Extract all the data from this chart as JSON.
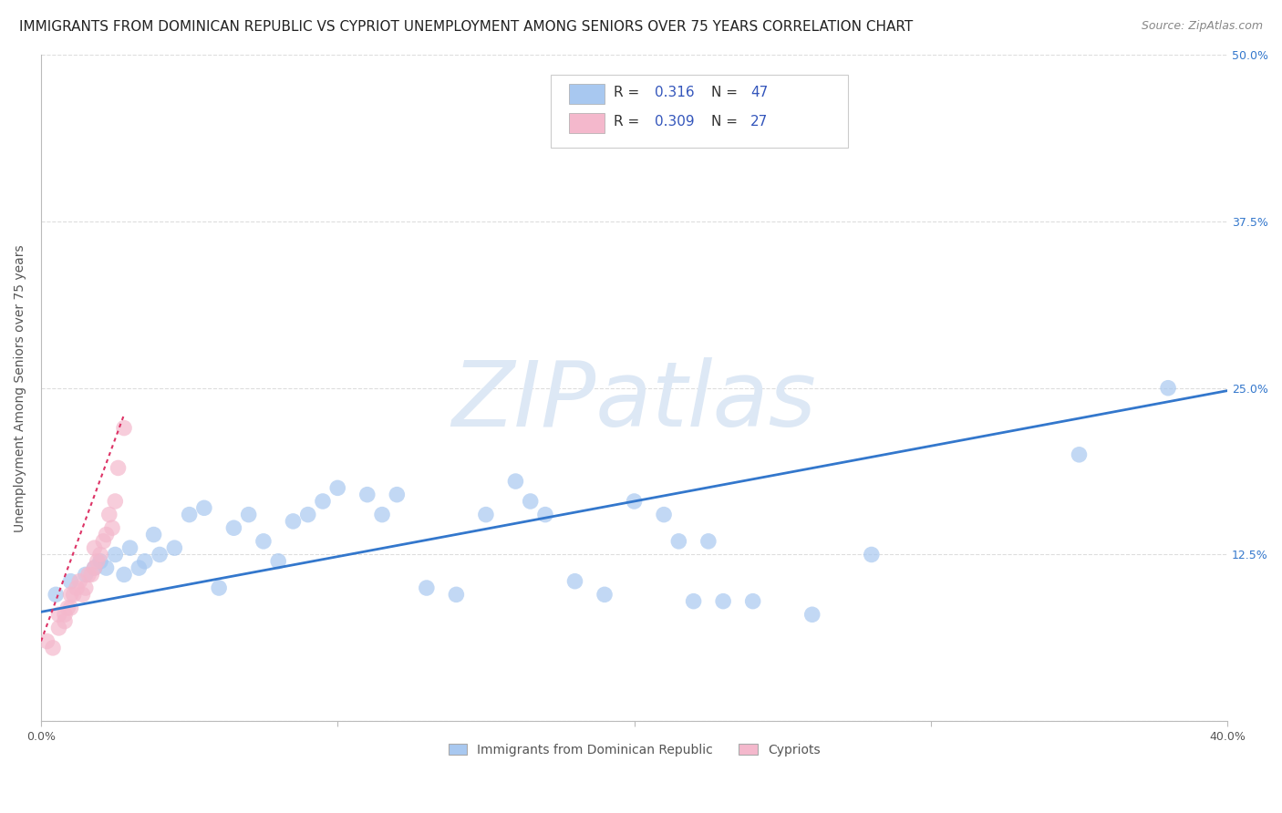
{
  "title": "IMMIGRANTS FROM DOMINICAN REPUBLIC VS CYPRIOT UNEMPLOYMENT AMONG SENIORS OVER 75 YEARS CORRELATION CHART",
  "source": "Source: ZipAtlas.com",
  "ylabel": "Unemployment Among Seniors over 75 years",
  "watermark_text": "ZIPatlas",
  "xlim": [
    0.0,
    0.4
  ],
  "ylim": [
    0.0,
    0.5
  ],
  "blue_scatter_x": [
    0.005,
    0.01,
    0.015,
    0.018,
    0.02,
    0.022,
    0.025,
    0.028,
    0.03,
    0.033,
    0.035,
    0.038,
    0.04,
    0.045,
    0.05,
    0.055,
    0.06,
    0.065,
    0.07,
    0.075,
    0.08,
    0.085,
    0.09,
    0.095,
    0.1,
    0.11,
    0.115,
    0.12,
    0.13,
    0.14,
    0.15,
    0.16,
    0.165,
    0.17,
    0.18,
    0.19,
    0.2,
    0.21,
    0.215,
    0.22,
    0.225,
    0.23,
    0.24,
    0.26,
    0.28,
    0.35,
    0.38
  ],
  "blue_scatter_y": [
    0.095,
    0.105,
    0.11,
    0.115,
    0.12,
    0.115,
    0.125,
    0.11,
    0.13,
    0.115,
    0.12,
    0.14,
    0.125,
    0.13,
    0.155,
    0.16,
    0.1,
    0.145,
    0.155,
    0.135,
    0.12,
    0.15,
    0.155,
    0.165,
    0.175,
    0.17,
    0.155,
    0.17,
    0.1,
    0.095,
    0.155,
    0.18,
    0.165,
    0.155,
    0.105,
    0.095,
    0.165,
    0.155,
    0.135,
    0.09,
    0.135,
    0.09,
    0.09,
    0.08,
    0.125,
    0.2,
    0.25
  ],
  "pink_scatter_x": [
    0.002,
    0.004,
    0.006,
    0.006,
    0.008,
    0.008,
    0.009,
    0.01,
    0.01,
    0.011,
    0.012,
    0.013,
    0.014,
    0.015,
    0.016,
    0.017,
    0.018,
    0.018,
    0.019,
    0.02,
    0.021,
    0.022,
    0.023,
    0.024,
    0.025,
    0.026,
    0.028
  ],
  "pink_scatter_y": [
    0.06,
    0.055,
    0.08,
    0.07,
    0.08,
    0.075,
    0.085,
    0.085,
    0.095,
    0.095,
    0.1,
    0.105,
    0.095,
    0.1,
    0.11,
    0.11,
    0.115,
    0.13,
    0.12,
    0.125,
    0.135,
    0.14,
    0.155,
    0.145,
    0.165,
    0.19,
    0.22
  ],
  "blue_line_x": [
    0.0,
    0.4
  ],
  "blue_line_y": [
    0.082,
    0.248
  ],
  "pink_line_x": [
    0.0,
    0.028
  ],
  "pink_line_y": [
    0.06,
    0.23
  ],
  "blue_scatter_color": "#a8c8f0",
  "pink_scatter_color": "#f4b8cc",
  "blue_line_color": "#3377cc",
  "pink_line_color": "#dd3366",
  "legend_R_blue": "0.316",
  "legend_N_blue": "47",
  "legend_R_pink": "0.309",
  "legend_N_pink": "27",
  "legend_label_blue": "Immigrants from Dominican Republic",
  "legend_label_pink": "Cypriots",
  "background_color": "#ffffff",
  "grid_color": "#dddddd",
  "watermark_color": "#dde8f5",
  "title_fontsize": 11,
  "source_fontsize": 9,
  "ylabel_fontsize": 10,
  "tick_fontsize": 9,
  "legend_value_color": "#3355bb",
  "right_tick_color": "#3377cc"
}
